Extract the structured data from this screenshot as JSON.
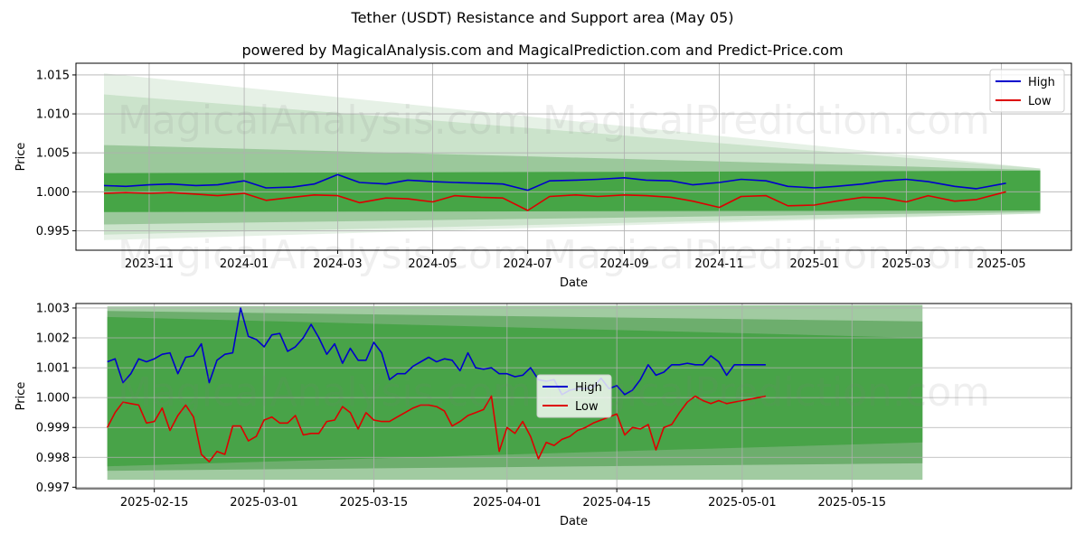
{
  "chart": {
    "title": "Tether (USDT) Resistance and Support area (May 05)",
    "subtitle": "powered by MagicalAnalysis.com and MagicalPrediction.com and Predict-Price.com",
    "watermarks": [
      "MagicalAnalysis.com",
      "MagicalPrediction.com"
    ]
  },
  "chart_data": [
    {
      "type": "line",
      "xlabel": "Date",
      "ylabel": "Price",
      "x_range": [
        "2023-09-15",
        "2025-06-15"
      ],
      "ylim": [
        0.9925,
        1.0165
      ],
      "x_ticks": [
        "2023-11-01",
        "2024-01-01",
        "2024-03-01",
        "2024-05-01",
        "2024-07-01",
        "2024-09-01",
        "2024-11-01",
        "2025-01-01",
        "2025-03-01",
        "2025-05-01"
      ],
      "x_tick_labels": [
        "2023-11",
        "2024-01",
        "2024-03",
        "2024-05",
        "2024-07",
        "2024-09",
        "2024-11",
        "2025-01",
        "2025-03",
        "2025-05"
      ],
      "y_ticks": [
        0.995,
        1.0,
        1.005,
        1.01,
        1.015
      ],
      "y_tick_labels": [
        "0.995",
        "1.000",
        "1.005",
        "1.010",
        "1.015"
      ],
      "grid": true,
      "legend": "top-right",
      "series": [
        {
          "name": "High",
          "color": "#0000cc",
          "x": [
            "2023-10-03",
            "2023-10-17",
            "2023-11-01",
            "2023-11-15",
            "2023-12-01",
            "2023-12-15",
            "2024-01-01",
            "2024-01-15",
            "2024-02-01",
            "2024-02-15",
            "2024-03-01",
            "2024-03-15",
            "2024-04-01",
            "2024-04-15",
            "2024-05-01",
            "2024-05-15",
            "2024-06-01",
            "2024-06-15",
            "2024-07-01",
            "2024-07-15",
            "2024-08-01",
            "2024-08-15",
            "2024-09-01",
            "2024-09-15",
            "2024-10-01",
            "2024-10-15",
            "2024-11-01",
            "2024-11-15",
            "2024-12-01",
            "2024-12-15",
            "2025-01-01",
            "2025-01-15",
            "2025-02-01",
            "2025-02-15",
            "2025-03-01",
            "2025-03-15",
            "2025-04-01",
            "2025-04-15",
            "2025-05-04"
          ],
          "values": [
            1.0008,
            1.0007,
            1.0009,
            1.001,
            1.0008,
            1.0009,
            1.0014,
            1.0005,
            1.0006,
            1.001,
            1.0022,
            1.0012,
            1.001,
            1.0015,
            1.0013,
            1.0012,
            1.0011,
            1.001,
            1.0002,
            1.0014,
            1.0015,
            1.0016,
            1.0018,
            1.0015,
            1.0014,
            1.0009,
            1.0012,
            1.0016,
            1.0014,
            1.0007,
            1.0005,
            1.0007,
            1.001,
            1.0014,
            1.0016,
            1.0013,
            1.0007,
            1.0004,
            1.0011
          ]
        },
        {
          "name": "Low",
          "color": "#dd0000",
          "x": [
            "2023-10-03",
            "2023-10-17",
            "2023-11-01",
            "2023-11-15",
            "2023-12-01",
            "2023-12-15",
            "2024-01-01",
            "2024-01-15",
            "2024-02-01",
            "2024-02-15",
            "2024-03-01",
            "2024-03-15",
            "2024-04-01",
            "2024-04-15",
            "2024-05-01",
            "2024-05-15",
            "2024-06-01",
            "2024-06-15",
            "2024-07-01",
            "2024-07-15",
            "2024-08-01",
            "2024-08-15",
            "2024-09-01",
            "2024-09-15",
            "2024-10-01",
            "2024-10-15",
            "2024-11-01",
            "2024-11-15",
            "2024-12-01",
            "2024-12-15",
            "2025-01-01",
            "2025-01-15",
            "2025-02-01",
            "2025-02-15",
            "2025-03-01",
            "2025-03-15",
            "2025-04-01",
            "2025-04-15",
            "2025-05-04"
          ],
          "values": [
            0.9998,
            0.9999,
            0.9998,
            0.9999,
            0.9997,
            0.9995,
            0.9998,
            0.9989,
            0.9993,
            0.9996,
            0.9995,
            0.9986,
            0.9992,
            0.9991,
            0.9987,
            0.9995,
            0.9993,
            0.9992,
            0.9976,
            0.9994,
            0.9996,
            0.9994,
            0.9996,
            0.9995,
            0.9993,
            0.9988,
            0.998,
            0.9994,
            0.9995,
            0.9982,
            0.9983,
            0.9988,
            0.9993,
            0.9992,
            0.9987,
            0.9995,
            0.9988,
            0.999,
            1.0
          ]
        }
      ]
    },
    {
      "type": "line",
      "xlabel": "Date",
      "ylabel": "Price",
      "x_range": [
        "2025-02-05",
        "2025-06-12"
      ],
      "ylim": [
        0.99695,
        1.00315
      ],
      "x_ticks": [
        "2025-02-15",
        "2025-03-01",
        "2025-03-15",
        "2025-04-01",
        "2025-04-15",
        "2025-05-01",
        "2025-05-15"
      ],
      "x_tick_labels": [
        "2025-02-15",
        "2025-03-01",
        "2025-03-15",
        "2025-04-01",
        "2025-04-15",
        "2025-05-01",
        "2025-05-15"
      ],
      "y_ticks": [
        0.997,
        0.998,
        0.999,
        1.0,
        1.001,
        1.002,
        1.003
      ],
      "y_tick_labels": [
        "0.997",
        "0.998",
        "0.999",
        "1.000",
        "1.001",
        "1.002",
        "1.003"
      ],
      "grid": true,
      "legend": "center",
      "series": [
        {
          "name": "High",
          "color": "#0000cc",
          "x": [
            "2025-02-09",
            "2025-02-10",
            "2025-02-11",
            "2025-02-12",
            "2025-02-13",
            "2025-02-14",
            "2025-02-15",
            "2025-02-16",
            "2025-02-17",
            "2025-02-18",
            "2025-02-19",
            "2025-02-20",
            "2025-02-21",
            "2025-02-22",
            "2025-02-23",
            "2025-02-24",
            "2025-02-25",
            "2025-02-26",
            "2025-02-27",
            "2025-02-28",
            "2025-03-01",
            "2025-03-02",
            "2025-03-03",
            "2025-03-04",
            "2025-03-05",
            "2025-03-06",
            "2025-03-07",
            "2025-03-08",
            "2025-03-09",
            "2025-03-10",
            "2025-03-11",
            "2025-03-12",
            "2025-03-13",
            "2025-03-14",
            "2025-03-15",
            "2025-03-16",
            "2025-03-17",
            "2025-03-18",
            "2025-03-19",
            "2025-03-20",
            "2025-03-21",
            "2025-03-22",
            "2025-03-23",
            "2025-03-24",
            "2025-03-25",
            "2025-03-26",
            "2025-03-27",
            "2025-03-28",
            "2025-03-29",
            "2025-03-30",
            "2025-03-31",
            "2025-04-01",
            "2025-04-02",
            "2025-04-03",
            "2025-04-04",
            "2025-04-05",
            "2025-04-06",
            "2025-04-07",
            "2025-04-08",
            "2025-04-09",
            "2025-04-10",
            "2025-04-11",
            "2025-04-12",
            "2025-04-13",
            "2025-04-14",
            "2025-04-15",
            "2025-04-16",
            "2025-04-17",
            "2025-04-18",
            "2025-04-19",
            "2025-04-20",
            "2025-04-21",
            "2025-04-22",
            "2025-04-23",
            "2025-04-24",
            "2025-04-25",
            "2025-04-26",
            "2025-04-27",
            "2025-04-28",
            "2025-04-29",
            "2025-04-30",
            "2025-05-01",
            "2025-05-02",
            "2025-05-03",
            "2025-05-04"
          ],
          "values": [
            1.0012,
            1.0013,
            1.0005,
            1.0008,
            1.0013,
            1.0012,
            1.0013,
            1.00145,
            1.0015,
            1.0008,
            1.00135,
            1.0014,
            1.0018,
            1.0005,
            1.00125,
            1.00145,
            1.0015,
            1.003,
            1.00205,
            1.00195,
            1.0017,
            1.0021,
            1.00215,
            1.00155,
            1.0017,
            1.002,
            1.00245,
            1.002,
            1.00145,
            1.0018,
            1.00115,
            1.00165,
            1.00125,
            1.00125,
            1.00185,
            1.0015,
            1.0006,
            1.0008,
            1.0008,
            1.00105,
            1.0012,
            1.00135,
            1.0012,
            1.0013,
            1.00125,
            1.0009,
            1.0015,
            1.001,
            1.00095,
            1.001,
            1.0008,
            1.0008,
            1.0007,
            1.00075,
            1.001,
            1.0006,
            1.00055,
            1.0006,
            1.0001,
            1.00025,
            1.0003,
            1.0003,
            1.00035,
            1.00065,
            1.0003,
            1.0004,
            1.0001,
            1.00025,
            1.0006,
            1.0011,
            1.00075,
            1.00085,
            1.0011,
            1.0011,
            1.00115,
            1.0011,
            1.0011,
            1.0014,
            1.0012,
            1.00075,
            1.0011,
            1.0011,
            1.0011,
            1.0011,
            1.0011
          ]
        },
        {
          "name": "Low",
          "color": "#dd0000",
          "x": [
            "2025-02-09",
            "2025-02-10",
            "2025-02-11",
            "2025-02-12",
            "2025-02-13",
            "2025-02-14",
            "2025-02-15",
            "2025-02-16",
            "2025-02-17",
            "2025-02-18",
            "2025-02-19",
            "2025-02-20",
            "2025-02-21",
            "2025-02-22",
            "2025-02-23",
            "2025-02-24",
            "2025-02-25",
            "2025-02-26",
            "2025-02-27",
            "2025-02-28",
            "2025-03-01",
            "2025-03-02",
            "2025-03-03",
            "2025-03-04",
            "2025-03-05",
            "2025-03-06",
            "2025-03-07",
            "2025-03-08",
            "2025-03-09",
            "2025-03-10",
            "2025-03-11",
            "2025-03-12",
            "2025-03-13",
            "2025-03-14",
            "2025-03-15",
            "2025-03-16",
            "2025-03-17",
            "2025-03-18",
            "2025-03-19",
            "2025-03-20",
            "2025-03-21",
            "2025-03-22",
            "2025-03-23",
            "2025-03-24",
            "2025-03-25",
            "2025-03-26",
            "2025-03-27",
            "2025-03-28",
            "2025-03-29",
            "2025-03-30",
            "2025-03-31",
            "2025-04-01",
            "2025-04-02",
            "2025-04-03",
            "2025-04-04",
            "2025-04-05",
            "2025-04-06",
            "2025-04-07",
            "2025-04-08",
            "2025-04-09",
            "2025-04-10",
            "2025-04-11",
            "2025-04-12",
            "2025-04-13",
            "2025-04-14",
            "2025-04-15",
            "2025-04-16",
            "2025-04-17",
            "2025-04-18",
            "2025-04-19",
            "2025-04-20",
            "2025-04-21",
            "2025-04-22",
            "2025-04-23",
            "2025-04-24",
            "2025-04-25",
            "2025-04-26",
            "2025-04-27",
            "2025-04-28",
            "2025-04-29",
            "2025-04-30",
            "2025-05-01",
            "2025-05-02",
            "2025-05-03",
            "2025-05-04"
          ],
          "values": [
            0.999,
            0.9995,
            0.99985,
            0.9998,
            0.99975,
            0.99915,
            0.9992,
            0.99965,
            0.9989,
            0.9994,
            0.99975,
            0.99935,
            0.9981,
            0.99785,
            0.9982,
            0.9981,
            0.99905,
            0.99905,
            0.99855,
            0.9987,
            0.99925,
            0.99935,
            0.99915,
            0.99915,
            0.9994,
            0.99875,
            0.9988,
            0.9988,
            0.9992,
            0.99925,
            0.9997,
            0.9995,
            0.99895,
            0.9995,
            0.99925,
            0.9992,
            0.9992,
            0.99935,
            0.9995,
            0.99965,
            0.99975,
            0.99975,
            0.9997,
            0.99955,
            0.99905,
            0.9992,
            0.9994,
            0.9995,
            0.9996,
            1.00005,
            0.9982,
            0.999,
            0.9988,
            0.9992,
            0.9987,
            0.99795,
            0.9985,
            0.9984,
            0.9986,
            0.9987,
            0.9989,
            0.999,
            0.99915,
            0.99925,
            0.99935,
            0.99945,
            0.99875,
            0.999,
            0.99895,
            0.9991,
            0.99825,
            0.999,
            0.9991,
            0.9995,
            0.99985,
            1.00005,
            0.9999,
            0.9998,
            0.9999,
            0.9998,
            0.99985,
            0.9999,
            0.99995,
            1.0,
            1.00005
          ]
        }
      ]
    }
  ]
}
